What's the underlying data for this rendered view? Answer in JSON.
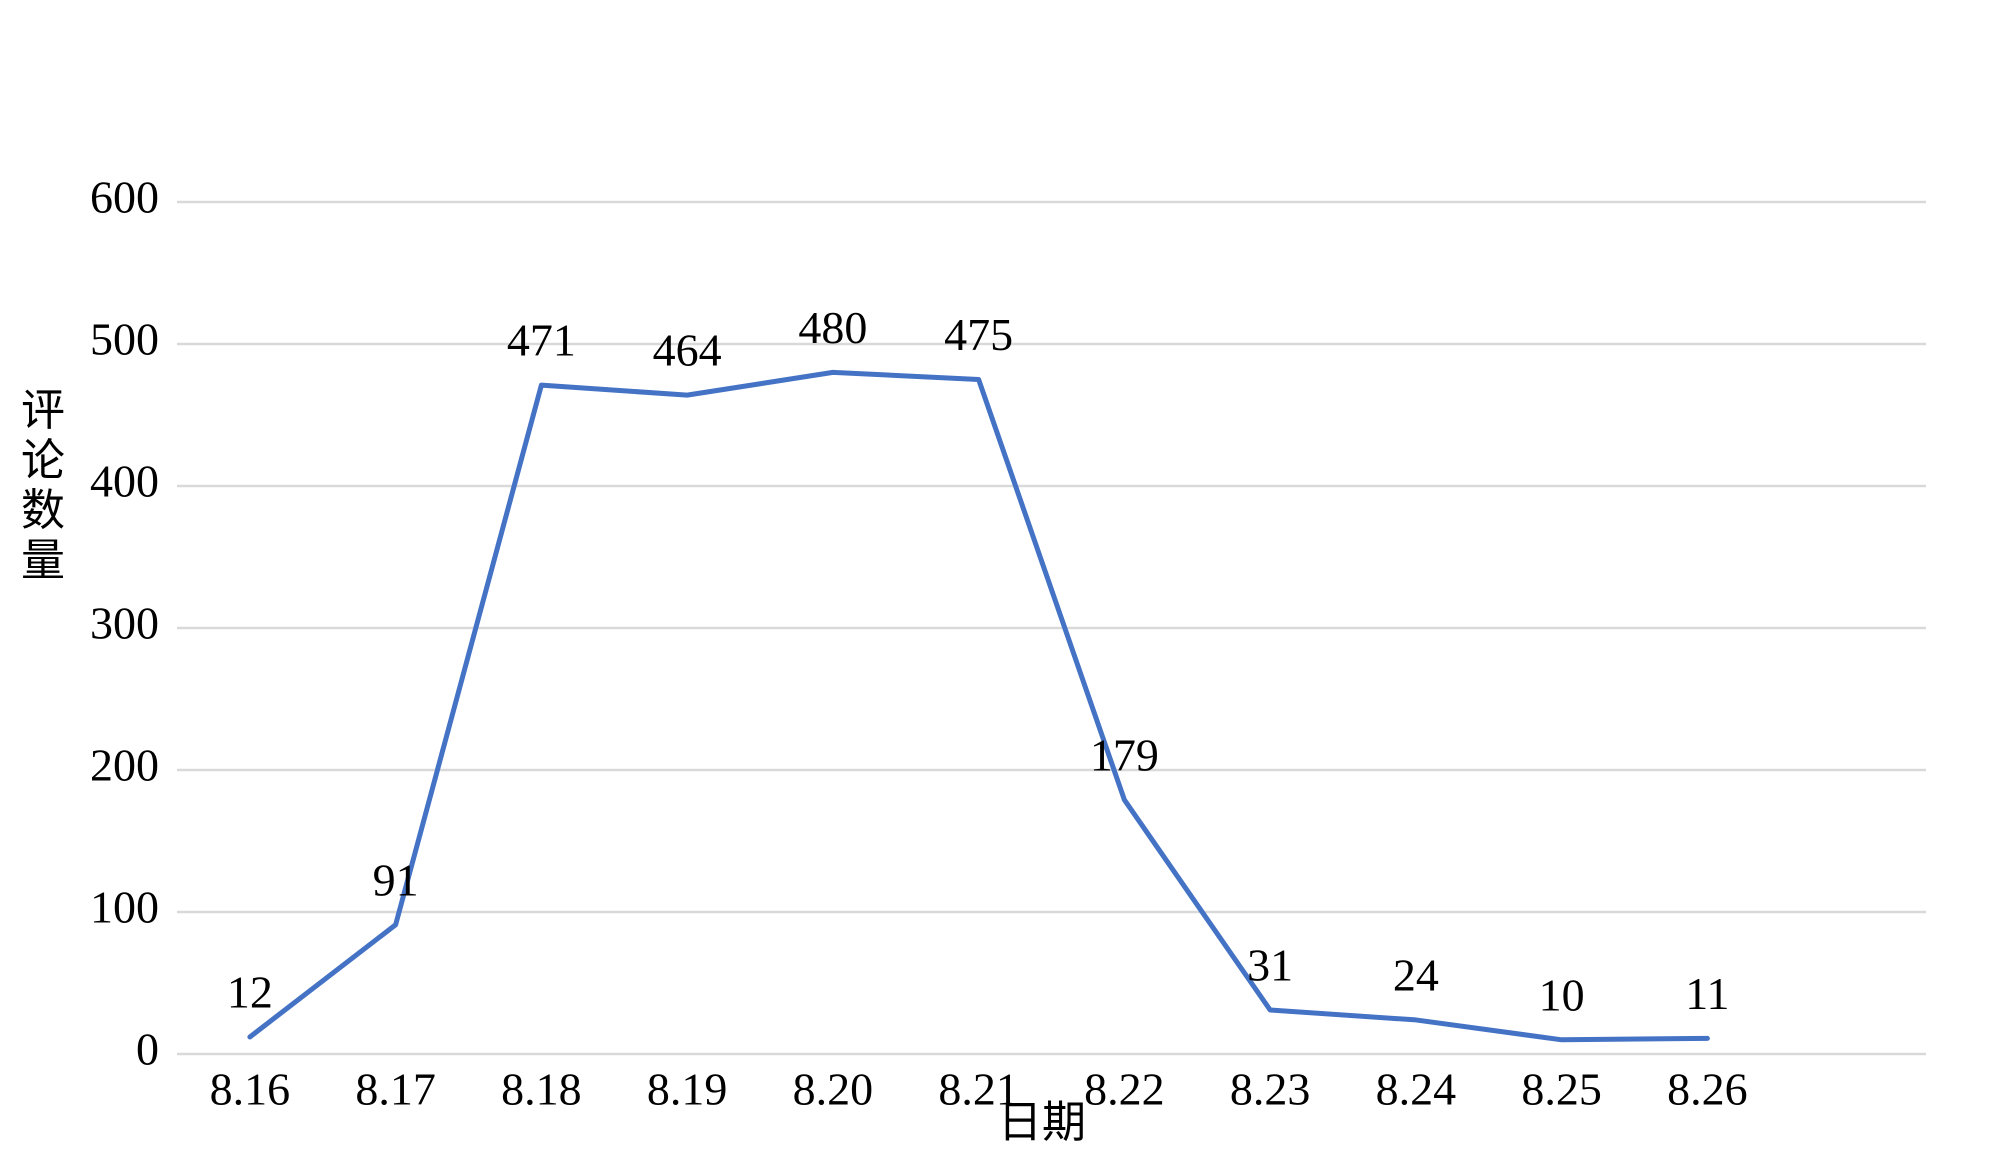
{
  "chart_data": {
    "type": "line",
    "categories": [
      "8.16",
      "8.17",
      "8.18",
      "8.19",
      "8.20",
      "8.21",
      "8.22",
      "8.23",
      "8.24",
      "8.25",
      "8.26",
      null
    ],
    "values": [
      12,
      91,
      471,
      464,
      480,
      475,
      179,
      31,
      24,
      10,
      11,
      null
    ],
    "color": "#4472c4",
    "xlabel": "日期",
    "ylabel": "评论数量",
    "ylim": [
      0,
      600
    ],
    "yticks": [
      0,
      100,
      200,
      300,
      400,
      500,
      600
    ],
    "grid": true
  }
}
